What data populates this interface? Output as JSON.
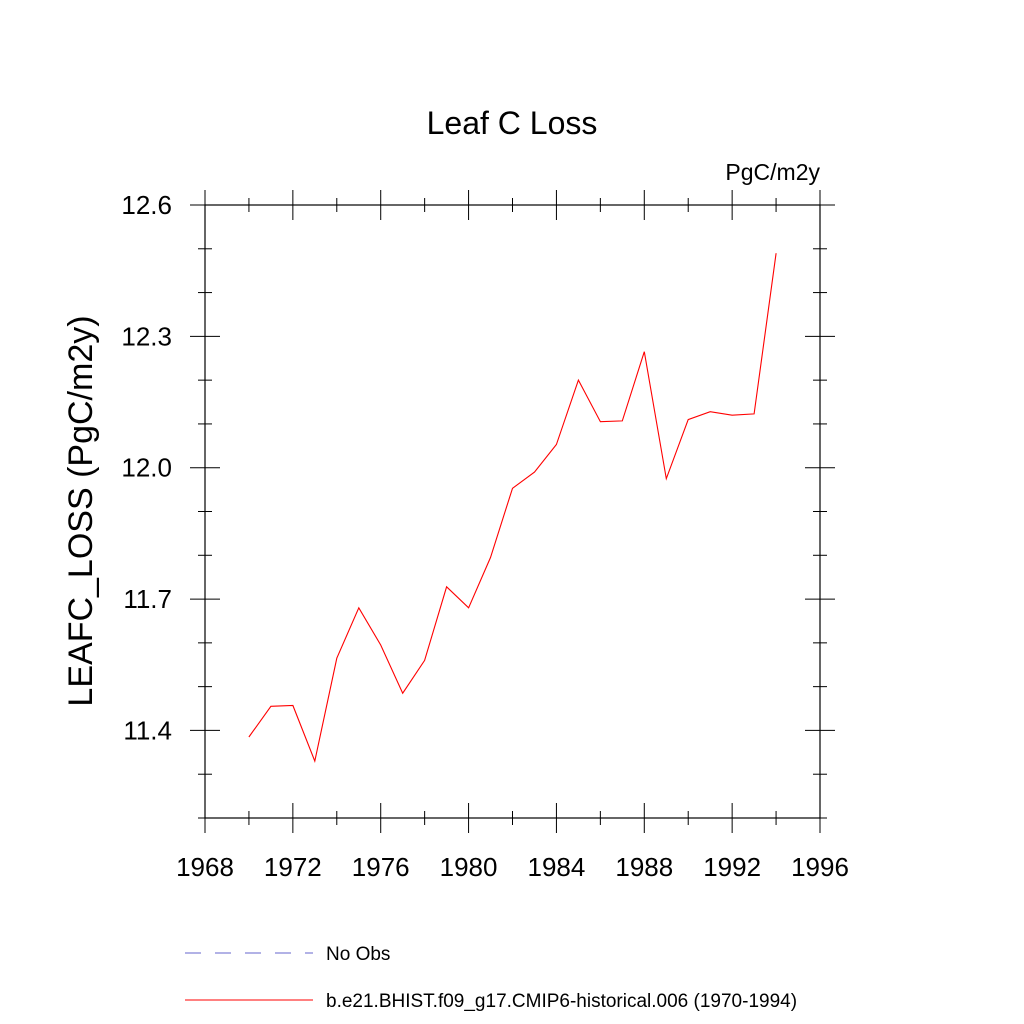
{
  "chart_data": {
    "type": "line",
    "title": "Leaf C Loss",
    "units_label": "PgC/m2y",
    "ylabel": "LEAFC_LOSS  (PgC/m2y)",
    "xlabel": "",
    "xlim": [
      1968,
      1996
    ],
    "ylim": [
      11.2,
      12.6
    ],
    "x_ticks": [
      1968,
      1972,
      1976,
      1980,
      1984,
      1988,
      1992,
      1996
    ],
    "x_tick_labels": [
      "1968",
      "1972",
      "1976",
      "1980",
      "1984",
      "1988",
      "1992",
      "1996"
    ],
    "y_ticks": [
      11.4,
      11.7,
      12.0,
      12.3,
      12.6
    ],
    "y_tick_labels": [
      "11.4",
      "11.7",
      "12.0",
      "12.3",
      "12.6"
    ],
    "x_minor_step": 2,
    "y_minor_step": 0.1,
    "grid": false,
    "legend_position": "bottom",
    "series": [
      {
        "name": "b.e21.BHIST.f09_g17.CMIP6-historical.006 (1970-1994)",
        "color": "#ff0000",
        "style": "solid",
        "x": [
          1970,
          1971,
          1972,
          1973,
          1974,
          1975,
          1976,
          1977,
          1978,
          1979,
          1980,
          1981,
          1982,
          1983,
          1984,
          1985,
          1986,
          1987,
          1988,
          1989,
          1990,
          1991,
          1992,
          1993,
          1994
        ],
        "values": [
          11.385,
          11.455,
          11.457,
          11.33,
          11.565,
          11.68,
          11.595,
          11.485,
          11.56,
          11.728,
          11.68,
          11.795,
          11.953,
          11.99,
          12.053,
          12.2,
          12.105,
          12.107,
          12.265,
          11.975,
          12.11,
          12.128,
          12.12,
          12.123,
          12.49
        ]
      },
      {
        "name": "No Obs",
        "color": "#6666cc",
        "style": "dashed",
        "x": [],
        "values": []
      }
    ]
  }
}
